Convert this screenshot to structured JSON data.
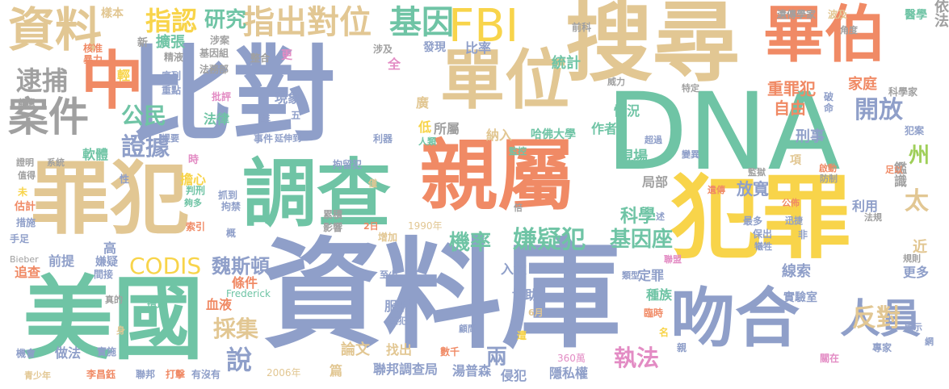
{
  "colors": {
    "slate": "#8f9fc9",
    "teal": "#6fc4a5",
    "orange": "#f08a65",
    "tan": "#e2c793",
    "yellow": "#f8d44a",
    "gray": "#a0a0a0",
    "green": "#9fcf59",
    "pink": "#e38cc4"
  },
  "words": [
    {
      "text": "資料庫",
      "color": "slate"
    },
    {
      "text": "比對",
      "color": "slate"
    },
    {
      "text": "DNA",
      "color": "teal"
    },
    {
      "text": "搜尋",
      "color": "tan"
    },
    {
      "text": "美國",
      "color": "teal"
    },
    {
      "text": "犯罪",
      "color": "yellow"
    },
    {
      "text": "罪犯",
      "color": "tan"
    },
    {
      "text": "親屬",
      "color": "orange"
    },
    {
      "text": "調查",
      "color": "teal"
    },
    {
      "text": "吻合",
      "color": "slate"
    },
    {
      "text": "單位",
      "color": "tan"
    },
    {
      "text": "畢伯",
      "color": "orange"
    },
    {
      "text": "中",
      "color": "orange"
    },
    {
      "text": "資料",
      "color": "tan"
    },
    {
      "text": "FBI",
      "color": "yellow"
    },
    {
      "text": "案件",
      "color": "gray"
    },
    {
      "text": "人員",
      "color": "slate"
    },
    {
      "text": "指出對位",
      "color": "tan"
    },
    {
      "text": "基因",
      "color": "teal"
    },
    {
      "text": "指認",
      "color": "yellow"
    },
    {
      "text": "研究",
      "color": "teal"
    },
    {
      "text": "逮捕",
      "color": "gray"
    },
    {
      "text": "開放",
      "color": "slate"
    },
    {
      "text": "證據",
      "color": "slate"
    },
    {
      "text": "公民",
      "color": "teal"
    },
    {
      "text": "嫌疑犯",
      "color": "teal"
    },
    {
      "text": "基因座",
      "color": "teal"
    },
    {
      "text": "機率",
      "color": "teal"
    },
    {
      "text": "CODIS",
      "color": "yellow"
    },
    {
      "text": "魏斯頓",
      "color": "slate"
    },
    {
      "text": "採集",
      "color": "tan"
    },
    {
      "text": "反對",
      "color": "tan"
    },
    {
      "text": "執法",
      "color": "pink"
    },
    {
      "text": "說",
      "color": "slate"
    },
    {
      "text": "兩",
      "color": "slate"
    },
    {
      "text": "科學",
      "color": "teal"
    },
    {
      "text": "統計",
      "color": "teal"
    },
    {
      "text": "擴張",
      "color": "teal"
    },
    {
      "text": "法醫",
      "color": "teal"
    },
    {
      "text": "家人",
      "color": "orange"
    },
    {
      "text": "太",
      "color": "tan"
    },
    {
      "text": "州",
      "color": "green"
    },
    {
      "text": "自由",
      "color": "orange"
    },
    {
      "text": "刑事",
      "color": "slate"
    },
    {
      "text": "重罪犯",
      "color": "orange"
    },
    {
      "text": "現場",
      "color": "teal"
    },
    {
      "text": "鑑識",
      "color": "gray"
    },
    {
      "text": "拘留",
      "color": "slate"
    },
    {
      "text": "利用",
      "color": "slate"
    },
    {
      "text": "放寬",
      "color": "slate"
    },
    {
      "text": "局部",
      "color": "gray"
    },
    {
      "text": "情況",
      "color": "teal"
    },
    {
      "text": "作者",
      "color": "teal"
    },
    {
      "text": "法律",
      "color": "teal"
    },
    {
      "text": "現象",
      "color": "slate"
    },
    {
      "text": "軟體",
      "color": "teal"
    },
    {
      "text": "特別",
      "color": "teal"
    },
    {
      "text": "家庭",
      "color": "orange"
    },
    {
      "text": "樣本",
      "color": "tan"
    },
    {
      "text": "比率",
      "color": "slate"
    },
    {
      "text": "發現",
      "color": "slate"
    },
    {
      "text": "所屬",
      "color": "gray"
    },
    {
      "text": "廣",
      "color": "tan"
    },
    {
      "text": "低",
      "color": "yellow"
    },
    {
      "text": "納入",
      "color": "tan"
    },
    {
      "text": "哈佛大學",
      "color": "teal"
    },
    {
      "text": "協助",
      "color": "slate"
    },
    {
      "text": "入獄",
      "color": "slate"
    },
    {
      "text": "服刑",
      "color": "slate"
    },
    {
      "text": "線索",
      "color": "slate"
    },
    {
      "text": "更多",
      "color": "slate"
    },
    {
      "text": "近",
      "color": "tan"
    },
    {
      "text": "實驗室",
      "color": "slate"
    },
    {
      "text": "儲存",
      "color": "slate"
    },
    {
      "text": "種族",
      "color": "teal"
    },
    {
      "text": "定罪",
      "color": "slate"
    },
    {
      "text": "血液",
      "color": "orange"
    },
    {
      "text": "條件",
      "color": "orange"
    },
    {
      "text": "高",
      "color": "slate"
    },
    {
      "text": "追查",
      "color": "orange"
    },
    {
      "text": "前提",
      "color": "slate"
    },
    {
      "text": "嫌疑",
      "color": "slate"
    },
    {
      "text": "做法",
      "color": "slate"
    },
    {
      "text": "論文",
      "color": "tan"
    },
    {
      "text": "找出",
      "color": "tan"
    },
    {
      "text": "聯邦調查局",
      "color": "slate"
    },
    {
      "text": "湯普森",
      "color": "slate"
    },
    {
      "text": "侵犯",
      "color": "slate"
    },
    {
      "text": "隱私權",
      "color": "slate"
    },
    {
      "text": "篇",
      "color": "tan"
    },
    {
      "text": "2006年",
      "color": "tan"
    },
    {
      "text": "李昌鈺",
      "color": "orange"
    },
    {
      "text": "打擊",
      "color": "orange"
    },
    {
      "text": "聯邦",
      "color": "slate"
    },
    {
      "text": "有沒有",
      "color": "slate"
    },
    {
      "text": "青少年",
      "color": "tan"
    },
    {
      "text": "機會",
      "color": "slate"
    },
    {
      "text": "實施",
      "color": "slate"
    },
    {
      "text": "數千",
      "color": "orange"
    },
    {
      "text": "360萬",
      "color": "pink"
    },
    {
      "text": "專家",
      "color": "slate"
    },
    {
      "text": "關在",
      "color": "pink"
    },
    {
      "text": "Frederick",
      "color": "teal"
    },
    {
      "text": "Bieber",
      "color": "gray"
    },
    {
      "text": "1990年",
      "color": "tan"
    },
    {
      "text": "前科",
      "color": "gray"
    },
    {
      "text": "遺傳學家",
      "color": "gray"
    },
    {
      "text": "波及",
      "color": "tan"
    },
    {
      "text": "醫學",
      "color": "teal"
    },
    {
      "text": "依法",
      "color": "gray"
    },
    {
      "text": "角度",
      "color": "gray"
    },
    {
      "text": "科學家",
      "color": "gray"
    },
    {
      "text": "全",
      "color": "pink"
    },
    {
      "text": "涉及",
      "color": "gray"
    },
    {
      "text": "涉案",
      "color": "gray"
    },
    {
      "text": "基因組",
      "color": "gray"
    },
    {
      "text": "法務部",
      "color": "gray"
    },
    {
      "text": "整合",
      "color": "gray"
    },
    {
      "text": "更",
      "color": "pink"
    },
    {
      "text": "新",
      "color": "gray"
    },
    {
      "text": "精液",
      "color": "gray"
    },
    {
      "text": "核准",
      "color": "orange"
    },
    {
      "text": "暴力",
      "color": "orange"
    },
    {
      "text": "輕",
      "color": "yellow"
    },
    {
      "text": "序列",
      "color": "slate"
    },
    {
      "text": "重點",
      "color": "slate"
    },
    {
      "text": "顧慮",
      "color": "gray"
    },
    {
      "text": "批評",
      "color": "pink"
    },
    {
      "text": "年",
      "color": "slate"
    },
    {
      "text": "刑登",
      "color": "slate"
    },
    {
      "text": "五",
      "color": "slate"
    },
    {
      "text": "事件",
      "color": "slate"
    },
    {
      "text": "延伸到",
      "color": "slate"
    },
    {
      "text": "利器",
      "color": "slate"
    },
    {
      "text": "人類",
      "color": "teal"
    },
    {
      "text": "監控",
      "color": "teal"
    },
    {
      "text": "提要",
      "color": "slate"
    },
    {
      "text": "時",
      "color": "pink"
    },
    {
      "text": "擔心",
      "color": "yellow"
    },
    {
      "text": "拘留犯",
      "color": "slate"
    },
    {
      "text": "證明",
      "color": "gray"
    },
    {
      "text": "系統",
      "color": "gray"
    },
    {
      "text": "值得",
      "color": "gray"
    },
    {
      "text": "估計",
      "color": "orange"
    },
    {
      "text": "措施",
      "color": "slate"
    },
    {
      "text": "手足",
      "color": "slate"
    },
    {
      "text": "未",
      "color": "yellow"
    },
    {
      "text": "性",
      "color": "slate"
    },
    {
      "text": "判刑",
      "color": "teal"
    },
    {
      "text": "夠多",
      "color": "teal"
    },
    {
      "text": "抓到",
      "color": "slate"
    },
    {
      "text": "拘禁",
      "color": "slate"
    },
    {
      "text": "索引",
      "color": "orange"
    },
    {
      "text": "概",
      "color": "slate"
    },
    {
      "text": "累積",
      "color": "gray"
    },
    {
      "text": "影響",
      "color": "gray"
    },
    {
      "text": "2日",
      "color": "orange"
    },
    {
      "text": "增加",
      "color": "tan"
    },
    {
      "text": "至少",
      "color": "slate"
    },
    {
      "text": "囚犯",
      "color": "slate"
    },
    {
      "text": "顧問",
      "color": "slate"
    },
    {
      "text": "6月",
      "color": "tan"
    },
    {
      "text": "遭",
      "color": "yellow"
    },
    {
      "text": "間接",
      "color": "slate"
    },
    {
      "text": "環境",
      "color": "teal"
    },
    {
      "text": "真的",
      "color": "gray"
    },
    {
      "text": "身",
      "color": "tan"
    },
    {
      "text": "類型",
      "color": "slate"
    },
    {
      "text": "聯盟",
      "color": "pink"
    },
    {
      "text": "臨時",
      "color": "orange"
    },
    {
      "text": "名",
      "color": "yellow"
    },
    {
      "text": "顯示",
      "color": "slate"
    },
    {
      "text": "網",
      "color": "slate"
    },
    {
      "text": "規則",
      "color": "gray"
    },
    {
      "text": "最多",
      "color": "slate"
    },
    {
      "text": "保出",
      "color": "slate"
    },
    {
      "text": "犧牲",
      "color": "slate"
    },
    {
      "text": "非",
      "color": "slate"
    },
    {
      "text": "迅捷",
      "color": "slate"
    },
    {
      "text": "法規",
      "color": "gray"
    },
    {
      "text": "公佈",
      "color": "orange"
    },
    {
      "text": "監獄",
      "color": "gray"
    },
    {
      "text": "遺傳",
      "color": "orange"
    },
    {
      "text": "防制",
      "color": "gray"
    },
    {
      "text": "啟動",
      "color": "orange"
    },
    {
      "text": "足以",
      "color": "orange"
    },
    {
      "text": "犯案",
      "color": "slate"
    },
    {
      "text": "項",
      "color": "tan"
    },
    {
      "text": "建立",
      "color": "gray"
    },
    {
      "text": "命",
      "color": "slate"
    },
    {
      "text": "破",
      "color": "slate"
    },
    {
      "text": "杜絕",
      "color": "pink"
    },
    {
      "text": "超過",
      "color": "slate"
    },
    {
      "text": "變異",
      "color": "slate"
    },
    {
      "text": "特定",
      "color": "gray"
    },
    {
      "text": "威力",
      "color": "gray"
    },
    {
      "text": "犯人",
      "color": "gray"
    },
    {
      "text": "倍",
      "color": "gray"
    },
    {
      "text": "僅",
      "color": "tan"
    },
    {
      "text": "述",
      "color": "slate"
    },
    {
      "text": "親",
      "color": "slate"
    }
  ]
}
